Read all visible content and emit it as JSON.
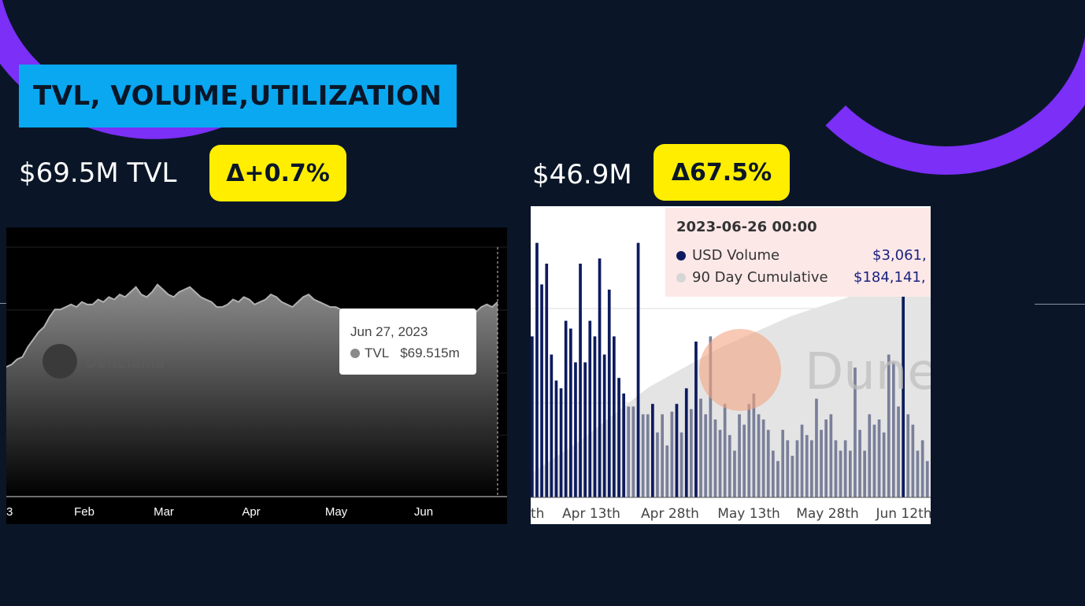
{
  "slide": {
    "title": "TVL, VOLUME,UTILIZATION",
    "tvl_stat": "$69.5M TVL",
    "tvl_delta": "Δ+0.7%",
    "volume_stat": "$46.9M",
    "volume_delta": "Δ67.5%",
    "colors": {
      "background": "#0a1628",
      "accent": "#7b2ff7",
      "title_bg": "#0aa8f0",
      "badge": "#ffee00"
    }
  },
  "tvl_chart": {
    "watermark": "DefiLlama",
    "tooltip_date": "Jun 27, 2023",
    "tooltip_label": "TVL",
    "tooltip_value": "$69.515m"
  },
  "volume_chart": {
    "watermark": "Dune",
    "tooltip_date": "2023-06-26 00:00",
    "tooltip_series1": "USD Volume",
    "tooltip_value1": "$3,061,",
    "tooltip_series2": "90 Day Cumulative",
    "tooltip_value2": "$184,141,"
  },
  "chart_data": [
    {
      "type": "area",
      "x_ticks": [
        "3",
        "Feb",
        "Mar",
        "Apr",
        "May",
        "Jun"
      ],
      "values": [
        52,
        53,
        55,
        56,
        60,
        63,
        66,
        68,
        72,
        75,
        75,
        76,
        77,
        76,
        78,
        77,
        77,
        79,
        78,
        80,
        79,
        81,
        80,
        82,
        84,
        81,
        80,
        82,
        85,
        83,
        81,
        80,
        82,
        83,
        84,
        82,
        80,
        79,
        78,
        76,
        76,
        77,
        79,
        78,
        80,
        79,
        77,
        78,
        79,
        81,
        80,
        78,
        77,
        76,
        78,
        80,
        81,
        79,
        78,
        77,
        76,
        76,
        75,
        74,
        75,
        74,
        73,
        72,
        72,
        73,
        72,
        71,
        72,
        73,
        72,
        71,
        71,
        72,
        73,
        72,
        71,
        71,
        70,
        71,
        69,
        70,
        72,
        74,
        76,
        77,
        76,
        78
      ],
      "ylim": [
        0,
        100
      ],
      "grid": true,
      "series": [
        {
          "name": "TVL",
          "color": "#9e9e9e"
        }
      ]
    },
    {
      "type": "bar",
      "x_ticks": [
        "th",
        "Apr 13th",
        "Apr 28th",
        "May 13th",
        "May 28th",
        "Jun 12th"
      ],
      "series": [
        {
          "name": "USD Volume",
          "color": "#0d1b5e",
          "values": [
            62,
            98,
            82,
            90,
            55,
            45,
            42,
            68,
            65,
            52,
            90,
            52,
            68,
            62,
            92,
            55,
            80,
            62,
            46,
            40,
            35,
            35,
            98,
            32,
            32,
            36,
            25,
            32,
            20,
            33,
            36,
            25,
            42,
            34,
            60,
            38,
            32,
            62,
            30,
            26,
            36,
            24,
            18,
            32,
            28,
            36,
            40,
            32,
            30,
            26,
            18,
            14,
            26,
            22,
            16,
            22,
            28,
            24,
            22,
            38,
            26,
            30,
            32,
            22,
            18,
            22,
            18,
            50,
            26,
            18,
            32,
            28,
            30,
            25,
            55,
            52,
            35,
            96,
            32,
            28,
            18,
            22,
            14
          ]
        },
        {
          "name": "90 Day Cumulative",
          "color": "#e0e0e0"
        }
      ],
      "ylim": [
        0,
        100
      ]
    }
  ]
}
